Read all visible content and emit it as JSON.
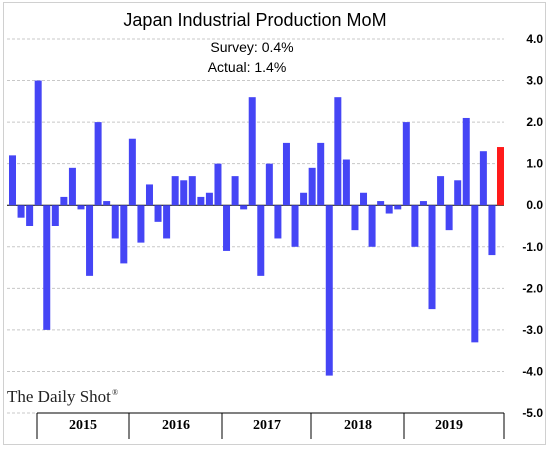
{
  "chart_data": {
    "type": "bar",
    "title": "Japan Industrial Production MoM",
    "annotations": [
      "Survey: 0.4%",
      "Actual:  1.4%"
    ],
    "brand": "The Daily Shot",
    "brand_mark": "®",
    "ylim": [
      -5.0,
      4.0
    ],
    "yticks": [
      "4.0",
      "3.0",
      "2.0",
      "1.0",
      "0.0",
      "-1.0",
      "-2.0",
      "-3.0",
      "-4.0",
      "-5.0"
    ],
    "year_labels": [
      "2015",
      "2016",
      "2017",
      "2018",
      "2019"
    ],
    "series_color": "#4545f5",
    "highlight_color": "#ff1a1a",
    "highlight_last": true,
    "values": [
      1.2,
      -0.3,
      -0.5,
      3.0,
      -3.0,
      -0.5,
      0.2,
      0.9,
      -0.1,
      -1.7,
      2.0,
      0.1,
      -0.8,
      -1.4,
      1.6,
      -0.9,
      0.5,
      -0.4,
      -0.8,
      0.7,
      0.6,
      0.7,
      0.2,
      0.3,
      1.0,
      -1.1,
      0.7,
      -0.1,
      2.6,
      -1.7,
      1.0,
      -0.8,
      1.5,
      -1.0,
      0.3,
      0.9,
      1.5,
      -4.1,
      2.6,
      1.1,
      -0.6,
      0.3,
      -1.0,
      0.1,
      -0.2,
      -0.1,
      2.0,
      -1.0,
      0.1,
      -2.5,
      0.7,
      -0.6,
      0.6,
      2.1,
      -3.3,
      1.3,
      -1.2,
      1.4
    ]
  }
}
